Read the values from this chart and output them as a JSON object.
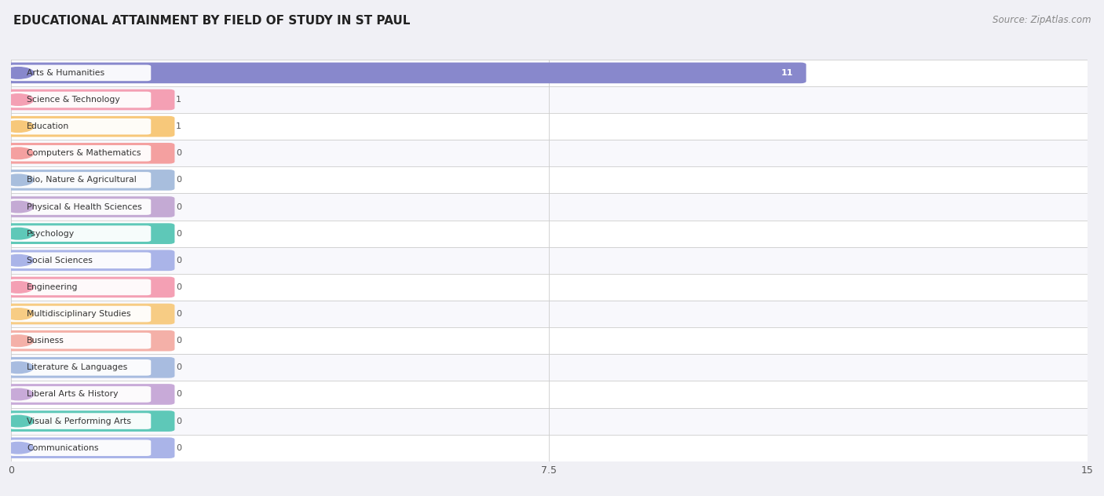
{
  "title": "EDUCATIONAL ATTAINMENT BY FIELD OF STUDY IN ST PAUL",
  "source": "Source: ZipAtlas.com",
  "categories": [
    "Arts & Humanities",
    "Science & Technology",
    "Education",
    "Computers & Mathematics",
    "Bio, Nature & Agricultural",
    "Physical & Health Sciences",
    "Psychology",
    "Social Sciences",
    "Engineering",
    "Multidisciplinary Studies",
    "Business",
    "Literature & Languages",
    "Liberal Arts & History",
    "Visual & Performing Arts",
    "Communications"
  ],
  "values": [
    11,
    1,
    1,
    0,
    0,
    0,
    0,
    0,
    0,
    0,
    0,
    0,
    0,
    0,
    0
  ],
  "bar_colors": [
    "#8888cc",
    "#f4a0b4",
    "#f7c87a",
    "#f4a0a0",
    "#a8bedd",
    "#c4aad4",
    "#5ec8b8",
    "#aab4e8",
    "#f4a0b4",
    "#f7cc84",
    "#f4b0a8",
    "#a8bce0",
    "#c8aad8",
    "#5ec8b8",
    "#aab4e8"
  ],
  "xlim": [
    0,
    15
  ],
  "xticks": [
    0,
    7.5,
    15
  ],
  "background_color": "#f0f0f5",
  "bar_row_bg_even": "#f8f8fc",
  "bar_row_bg_odd": "#ffffff",
  "title_fontsize": 11,
  "source_fontsize": 8.5,
  "min_bar_display": 2.2
}
